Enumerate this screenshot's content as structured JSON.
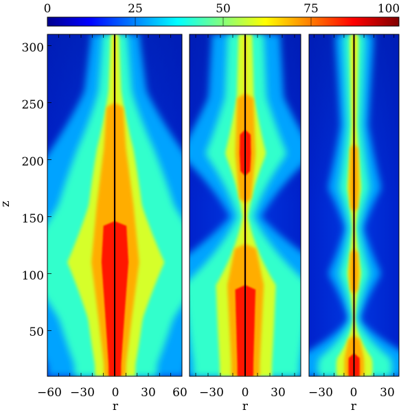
{
  "figure": {
    "colorbar": {
      "ticks": [
        "0",
        "25",
        "50",
        "75",
        "100"
      ],
      "range": [
        0,
        100
      ],
      "colormap": [
        "#00008f",
        "#0000ff",
        "#00ffff",
        "#ffff00",
        "#ff0000",
        "#800000"
      ]
    },
    "y_label": "z",
    "y_ticks": [
      "50",
      "100",
      "150",
      "200",
      "250",
      "300"
    ],
    "x_label": "r",
    "panels": [
      {
        "x_ticks": [
          "−60",
          "−30",
          "0",
          "30",
          "60"
        ]
      },
      {
        "x_ticks": [
          "−30",
          "0",
          "30"
        ]
      },
      {
        "x_ticks": [
          "−30",
          "0",
          "30"
        ]
      }
    ]
  },
  "chart_data": [
    {
      "type": "heatmap",
      "title": "",
      "xlabel": "r",
      "ylabel": "z",
      "xlim": [
        -60,
        60
      ],
      "ylim": [
        10,
        310
      ],
      "zlim": [
        0,
        100
      ],
      "axis_line_x": 0,
      "jet_width_profile": [
        {
          "z": 20,
          "width": 12,
          "peak": 90
        },
        {
          "z": 60,
          "width": 18,
          "peak": 85
        },
        {
          "z": 110,
          "width": 26,
          "peak": 95
        },
        {
          "z": 160,
          "width": 20,
          "peak": 80
        },
        {
          "z": 210,
          "width": 12,
          "peak": 85
        },
        {
          "z": 260,
          "width": 8,
          "peak": 65
        },
        {
          "z": 305,
          "width": 7,
          "peak": 60
        }
      ]
    },
    {
      "type": "heatmap",
      "title": "",
      "xlabel": "r",
      "ylabel": "z",
      "xlim": [
        -45,
        45
      ],
      "ylim": [
        10,
        310
      ],
      "zlim": [
        0,
        100
      ],
      "axis_line_x": 0,
      "jet_width_profile": [
        {
          "z": 20,
          "width": 14,
          "peak": 90
        },
        {
          "z": 90,
          "width": 18,
          "peak": 85
        },
        {
          "z": 150,
          "width": 4,
          "peak": 60
        },
        {
          "z": 205,
          "width": 10,
          "peak": 95
        },
        {
          "z": 255,
          "width": 8,
          "peak": 70
        },
        {
          "z": 305,
          "width": 8,
          "peak": 65
        }
      ]
    },
    {
      "type": "heatmap",
      "title": "",
      "xlabel": "r",
      "ylabel": "z",
      "xlim": [
        -45,
        45
      ],
      "ylim": [
        10,
        310
      ],
      "zlim": [
        0,
        100
      ],
      "axis_line_x": 0,
      "jet_width_profile": [
        {
          "z": 25,
          "width": 12,
          "peak": 90
        },
        {
          "z": 60,
          "width": 2,
          "peak": 55
        },
        {
          "z": 100,
          "width": 6,
          "peak": 80
        },
        {
          "z": 140,
          "width": 3,
          "peak": 60
        },
        {
          "z": 175,
          "width": 6,
          "peak": 80
        },
        {
          "z": 230,
          "width": 4,
          "peak": 65
        },
        {
          "z": 300,
          "width": 5,
          "peak": 70
        }
      ]
    }
  ]
}
